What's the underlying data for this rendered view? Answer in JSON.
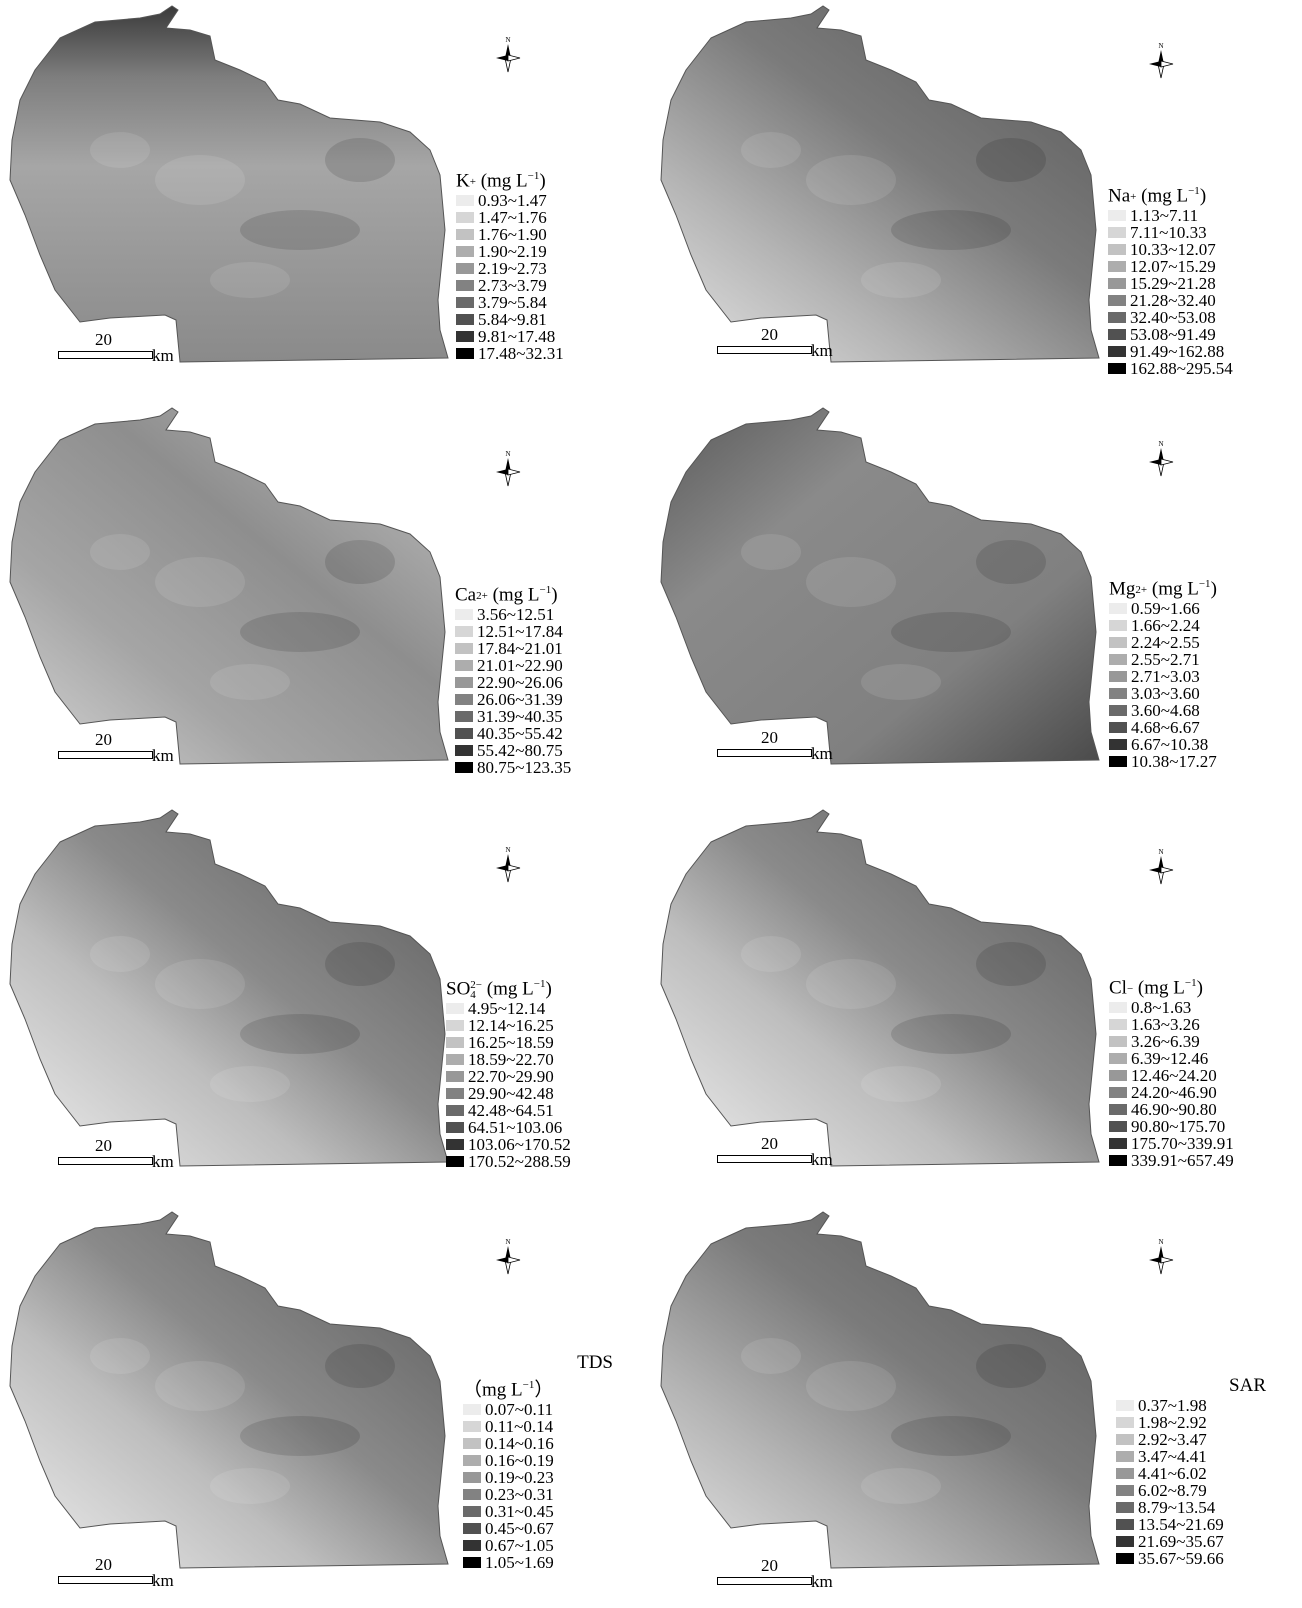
{
  "scale": {
    "distance": "20",
    "unit": "km"
  },
  "north_arrow": {
    "label": "N",
    "icon": "north-arrow-icon"
  },
  "swatch_colors": [
    "#ececec",
    "#d6d6d6",
    "#c2c2c2",
    "#adadad",
    "#989898",
    "#828282",
    "#6a6a6a",
    "#515151",
    "#333333",
    "#000000"
  ],
  "panels": [
    {
      "id": "k",
      "title": {
        "base": "K",
        "sup": "+",
        "unit": " (mg L",
        "unit_sup": "−1",
        "close": ")"
      },
      "ranges": [
        "0.93~1.47",
        "1.47~1.76",
        "1.76~1.90",
        "1.90~2.19",
        "2.19~2.73",
        "2.73~3.79",
        "3.79~5.84",
        "5.84~9.81",
        "9.81~17.48",
        "17.48~32.31"
      ],
      "shading": "top-dark",
      "base_shade": "#a3a3a3"
    },
    {
      "id": "na",
      "title": {
        "base": "Na",
        "sup": "+",
        "unit": " (mg L",
        "unit_sup": "−1",
        "close": ")"
      },
      "ranges": [
        "1.13~7.11",
        "7.11~10.33",
        "10.33~12.07",
        "12.07~15.29",
        "15.29~21.28",
        "21.28~32.40",
        "32.40~53.08",
        "53.08~91.49",
        "91.49~162.88",
        "162.88~295.54"
      ],
      "shading": "sw-light",
      "base_shade": "#8c8c8c"
    },
    {
      "id": "ca",
      "title": {
        "base": "Ca",
        "sup": "2+",
        "unit": " (mg L",
        "unit_sup": "−1",
        "close": ")"
      },
      "ranges": [
        "3.56~12.51",
        "12.51~17.84",
        "17.84~21.01",
        "21.01~22.90",
        "22.90~26.06",
        "26.06~31.39",
        "31.39~40.35",
        "40.35~55.42",
        "55.42~80.75",
        "80.75~123.35"
      ],
      "shading": "edge-light",
      "base_shade": "#9a9a9a"
    },
    {
      "id": "mg",
      "title": {
        "base": "Mg",
        "sup": "2+",
        "unit": " (mg L",
        "unit_sup": "−1",
        "close": ")"
      },
      "ranges": [
        "0.59~1.66",
        "1.66~2.24",
        "2.24~2.55",
        "2.55~2.71",
        "2.71~3.03",
        "3.03~3.60",
        "3.60~4.68",
        "4.68~6.67",
        "6.67~10.38",
        "10.38~17.27"
      ],
      "shading": "uniform",
      "base_shade": "#7e7e7e"
    },
    {
      "id": "so4",
      "title": {
        "base": "SO",
        "sup": "2−",
        "sub": "4",
        "unit": " (mg L",
        "unit_sup": "−1",
        "close": ")"
      },
      "ranges": [
        "4.95~12.14",
        "12.14~16.25",
        "16.25~18.59",
        "18.59~22.70",
        "22.70~29.90",
        "29.90~42.48",
        "42.48~64.51",
        "64.51~103.06",
        "103.06~170.52",
        "170.52~288.59"
      ],
      "shading": "diag",
      "base_shade": "#7a7a7a"
    },
    {
      "id": "cl",
      "title": {
        "base": "Cl",
        "sup": "−",
        "unit": "  (mg L",
        "unit_sup": "−1",
        "close": ")"
      },
      "ranges": [
        "0.8~1.63",
        "1.63~3.26",
        "3.26~6.39",
        "6.39~12.46",
        "12.46~24.20",
        "24.20~46.90",
        "46.90~90.80",
        "90.80~175.70",
        "175.70~339.91",
        "339.91~657.49"
      ],
      "shading": "diag",
      "base_shade": "#7c7c7c"
    },
    {
      "id": "tds",
      "title": {
        "base": "TDS",
        "unit_line": "（mg L",
        "unit_sup": "−1",
        "close": "）"
      },
      "ranges": [
        "0.07~0.11",
        "0.11~0.14",
        "0.14~0.16",
        "0.16~0.19",
        "0.19~0.23",
        "0.23~0.31",
        "0.31~0.45",
        "0.45~0.67",
        "0.67~1.05",
        "1.05~1.69"
      ],
      "shading": "diag",
      "base_shade": "#888888"
    },
    {
      "id": "sar",
      "title": {
        "base": "SAR"
      },
      "ranges": [
        "0.37~1.98",
        "1.98~2.92",
        "2.92~3.47",
        "3.47~4.41",
        "4.41~6.02",
        "6.02~8.79",
        "8.79~13.54",
        "13.54~21.69",
        "21.69~35.67",
        "35.67~59.66"
      ],
      "shading": "sw-light",
      "base_shade": "#7d7d7d"
    }
  ]
}
